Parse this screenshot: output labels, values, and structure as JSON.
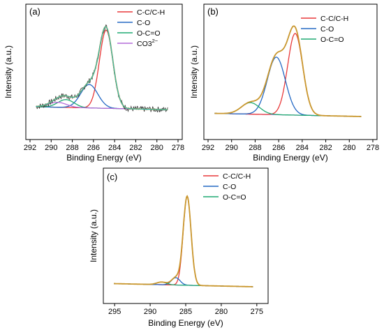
{
  "chart_data": [
    {
      "type": "line",
      "panel_label": "(a)",
      "xlabel": "Binding Energy (eV)",
      "ylabel": "Intensity (a.u.)",
      "xlim": [
        292,
        278
      ],
      "xticks": [
        "292",
        "290",
        "288",
        "286",
        "284",
        "282",
        "280",
        "278"
      ],
      "legend": {
        "position": "top-right"
      },
      "series": [
        {
          "name": "C-C/C-H",
          "color": "#e8393a",
          "center": 284.8,
          "fwhm": 1.5,
          "height": 0.8
        },
        {
          "name": "C-O",
          "color": "#2368c4",
          "center": 286.4,
          "fwhm": 1.9,
          "height": 0.24
        },
        {
          "name": "O-C=O",
          "color": "#1faa72",
          "center": 288.6,
          "fwhm": 1.8,
          "height": 0.08
        },
        {
          "name": "CO3",
          "name_sup": "2−",
          "color": "#b36bd9",
          "center": 289.4,
          "fwhm": 2.0,
          "height": 0.05
        }
      ],
      "envelope_color": "#c9972e",
      "raw_color": "#333333",
      "fit_color": "#33b9b2"
    },
    {
      "type": "line",
      "panel_label": "(b)",
      "xlabel": "Binding Energy (eV)",
      "ylabel": "Intensity (a.u.)",
      "xlim": [
        292,
        278
      ],
      "xticks": [
        "292",
        "290",
        "288",
        "286",
        "284",
        "282",
        "280",
        "278"
      ],
      "legend": {
        "position": "top-right"
      },
      "series": [
        {
          "name": "C-C/C-H",
          "color": "#e8393a",
          "center": 284.6,
          "fwhm": 1.5,
          "height": 0.78
        },
        {
          "name": "C-O",
          "color": "#2368c4",
          "center": 286.2,
          "fwhm": 1.8,
          "height": 0.55
        },
        {
          "name": "O-C=O",
          "color": "#1faa72",
          "center": 288.4,
          "fwhm": 1.8,
          "height": 0.11
        }
      ],
      "envelope_color": "#c9972e",
      "baseline_color": "#b36bd9"
    },
    {
      "type": "line",
      "panel_label": "(c)",
      "xlabel": "Binding Energy (eV)",
      "ylabel": "Intensity (a.u.)",
      "xlim": [
        296,
        274
      ],
      "xticks": [
        "295",
        "290",
        "285",
        "280",
        "275"
      ],
      "legend": {
        "position": "top-right"
      },
      "series": [
        {
          "name": "C-C/C-H",
          "color": "#e8393a",
          "center": 284.8,
          "fwhm": 1.3,
          "height": 0.85
        },
        {
          "name": "C-O",
          "color": "#2368c4",
          "center": 286.4,
          "fwhm": 1.4,
          "height": 0.07
        },
        {
          "name": "O-C=O",
          "color": "#1faa72",
          "center": 288.4,
          "fwhm": 1.6,
          "height": 0.025
        }
      ],
      "envelope_color": "#c9972e",
      "baseline_color": "#b36bd9"
    }
  ]
}
